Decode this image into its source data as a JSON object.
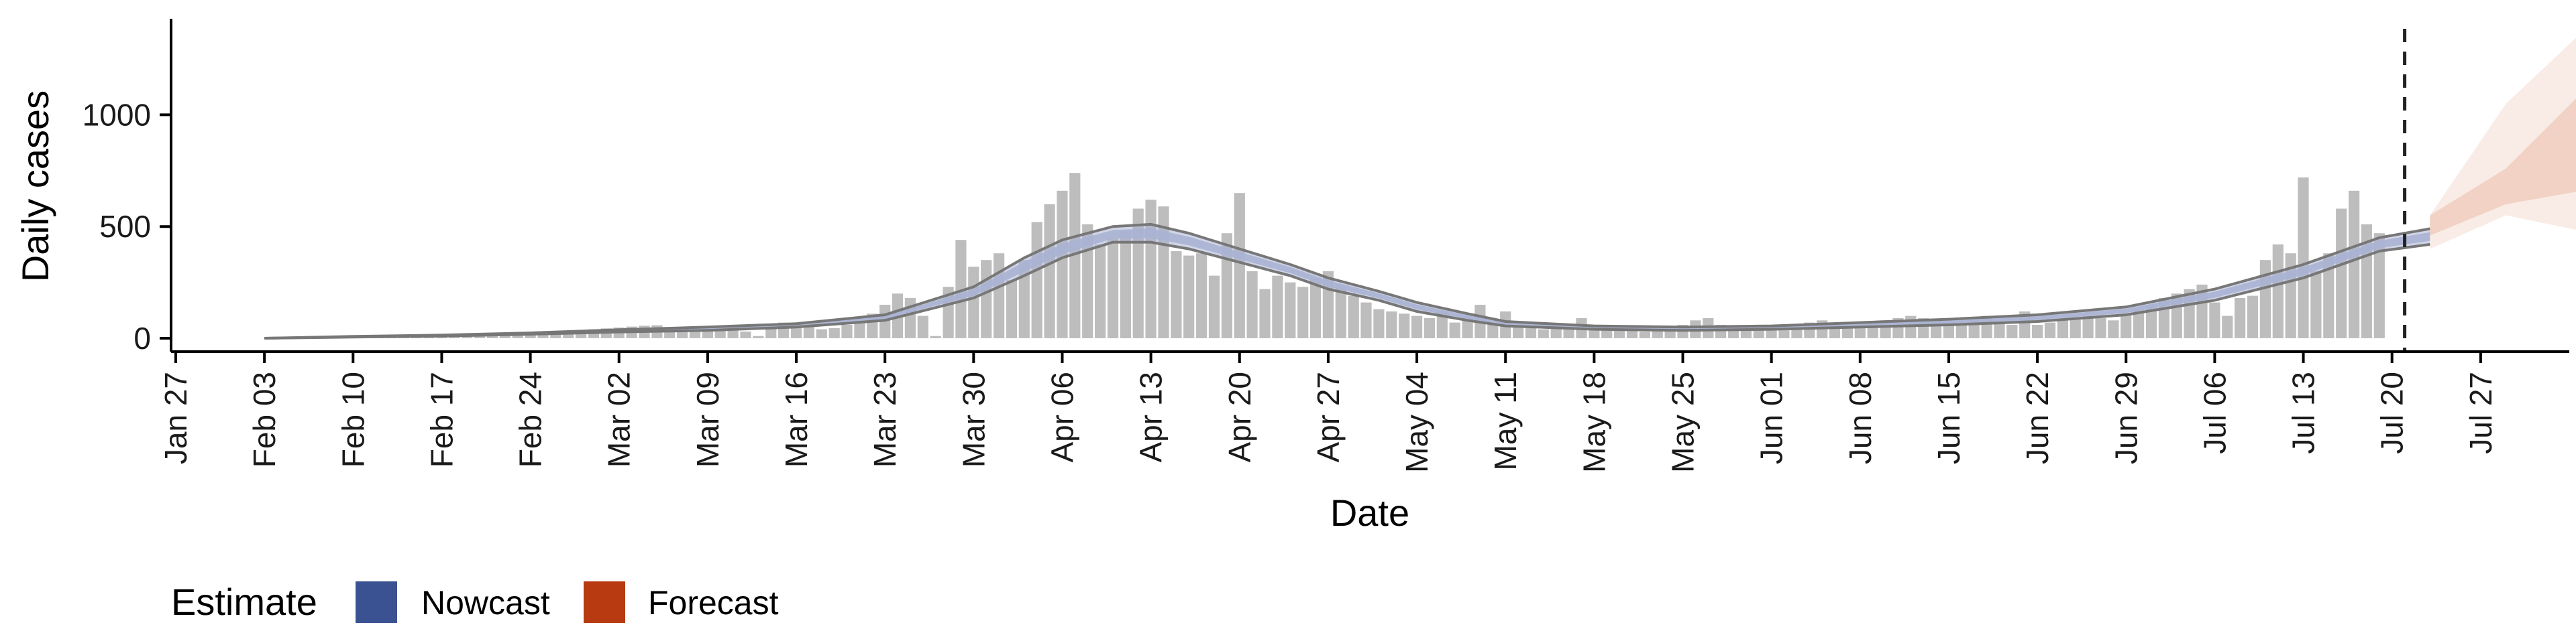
{
  "chart_data": {
    "type": "bar",
    "title": "",
    "xlabel": "Date",
    "ylabel": "Daily cases",
    "ylim": [
      -60,
      1430
    ],
    "y_ticks": [
      0,
      500,
      1000
    ],
    "x_tick_labels": [
      "Jan 27",
      "Feb 03",
      "Feb 10",
      "Feb 17",
      "Feb 24",
      "Mar 02",
      "Mar 09",
      "Mar 16",
      "Mar 23",
      "Mar 30",
      "Apr 06",
      "Apr 13",
      "Apr 20",
      "Apr 27",
      "May 04",
      "May 11",
      "May 18",
      "May 25",
      "Jun 01",
      "Jun 08",
      "Jun 15",
      "Jun 22",
      "Jun 29",
      "Jul 06",
      "Jul 13",
      "Jul 20",
      "Jul 27"
    ],
    "x_start_date": "Jan 27",
    "x_end_day": 189,
    "forecast_cutoff_date": "Jul 21",
    "grid": false,
    "colors": {
      "bars": "#bdbdbd",
      "nowcast": "#3a5292",
      "forecast": "#b83a10",
      "nowcast_band": "#aab3d3",
      "forecast_band": "#e5a98d",
      "outline": "#777777"
    },
    "bar_days": [
      8,
      9,
      10,
      11,
      12,
      13,
      14,
      15,
      16,
      17,
      18,
      19,
      20,
      21,
      22,
      23,
      24,
      25,
      26,
      27,
      28,
      29,
      30,
      31,
      32,
      33,
      34,
      35,
      36,
      37,
      38,
      39,
      40,
      41,
      42,
      43,
      44,
      45,
      46,
      47,
      48,
      49,
      50,
      51,
      52,
      53,
      54,
      55,
      56,
      57,
      58,
      59,
      60,
      61,
      62,
      63,
      64,
      65,
      66,
      67,
      68,
      69,
      70,
      71,
      72,
      73,
      74,
      75,
      76,
      77,
      78,
      79,
      80,
      81,
      82,
      83,
      84,
      85,
      86,
      87,
      88,
      89,
      90,
      91,
      92,
      93,
      94,
      95,
      96,
      97,
      98,
      99,
      100,
      101,
      102,
      103,
      104,
      105,
      106,
      107,
      108,
      109,
      110,
      111,
      112,
      113,
      114,
      115,
      116,
      117,
      118,
      119,
      120,
      121,
      122,
      123,
      124,
      125,
      126,
      127,
      128,
      129,
      130,
      131,
      132,
      133,
      134,
      135,
      136,
      137,
      138,
      139,
      140,
      141,
      142,
      143,
      144,
      145,
      146,
      147,
      148,
      149,
      150,
      151,
      152,
      153,
      154,
      155,
      156,
      157,
      158,
      159,
      160,
      161,
      162,
      163,
      164,
      165,
      166,
      167,
      168,
      169,
      170,
      171,
      172,
      173,
      174,
      175,
      176,
      177,
      178
    ],
    "bar_values": [
      3,
      4,
      4,
      5,
      6,
      7,
      8,
      8,
      9,
      10,
      11,
      12,
      13,
      14,
      15,
      16,
      17,
      18,
      20,
      22,
      24,
      27,
      30,
      33,
      36,
      40,
      44,
      48,
      52,
      56,
      58,
      38,
      42,
      46,
      50,
      55,
      60,
      30,
      10,
      50,
      70,
      60,
      50,
      40,
      45,
      60,
      80,
      110,
      150,
      200,
      180,
      100,
      10,
      230,
      440,
      320,
      350,
      380,
      260,
      350,
      520,
      600,
      660,
      740,
      510,
      420,
      450,
      480,
      580,
      620,
      590,
      390,
      370,
      380,
      280,
      470,
      650,
      300,
      220,
      280,
      250,
      230,
      270,
      300,
      240,
      190,
      160,
      130,
      120,
      110,
      100,
      90,
      120,
      70,
      100,
      150,
      60,
      120,
      60,
      50,
      40,
      50,
      60,
      90,
      60,
      50,
      40,
      50,
      30,
      40,
      50,
      60,
      80,
      90,
      60,
      50,
      40,
      50,
      60,
      50,
      60,
      70,
      80,
      60,
      50,
      60,
      70,
      80,
      90,
      100,
      90,
      80,
      70,
      60,
      80,
      100,
      70,
      60,
      120,
      60,
      70,
      80,
      90,
      100,
      90,
      80,
      110,
      130,
      150,
      180,
      200,
      220,
      240,
      160,
      100,
      180,
      190,
      350,
      420,
      380,
      720,
      300,
      380,
      580,
      660,
      510,
      470
    ],
    "nowcast": {
      "label": "Nowcast",
      "days": [
        7,
        14,
        21,
        28,
        35,
        42,
        49,
        56,
        63,
        67,
        70,
        74,
        77,
        80,
        84,
        88,
        91,
        95,
        98,
        102,
        105,
        112,
        119,
        126,
        133,
        140,
        147,
        154,
        161,
        168,
        174,
        178
      ],
      "lower": [
        0,
        5,
        10,
        18,
        28,
        35,
        50,
        80,
        180,
        280,
        360,
        430,
        430,
        400,
        340,
        280,
        220,
        170,
        120,
        80,
        55,
        40,
        35,
        40,
        50,
        60,
        75,
        105,
        170,
        270,
        390,
        420
      ],
      "upper": [
        0,
        8,
        14,
        24,
        38,
        50,
        65,
        105,
        230,
        360,
        440,
        500,
        510,
        470,
        400,
        330,
        270,
        210,
        160,
        110,
        75,
        55,
        50,
        55,
        70,
        85,
        105,
        140,
        220,
        330,
        450,
        490
      ]
    },
    "forecast": {
      "label": "Forecast",
      "days": [
        178,
        184,
        190
      ],
      "lower_outer": [
        400,
        550,
        480
      ],
      "lower_inner": [
        460,
        600,
        660
      ],
      "upper_inner": [
        550,
        760,
        1100
      ],
      "upper_outer": [
        550,
        1050,
        1370
      ]
    },
    "legend": {
      "title": "Estimate",
      "position": "bottom-left"
    }
  }
}
